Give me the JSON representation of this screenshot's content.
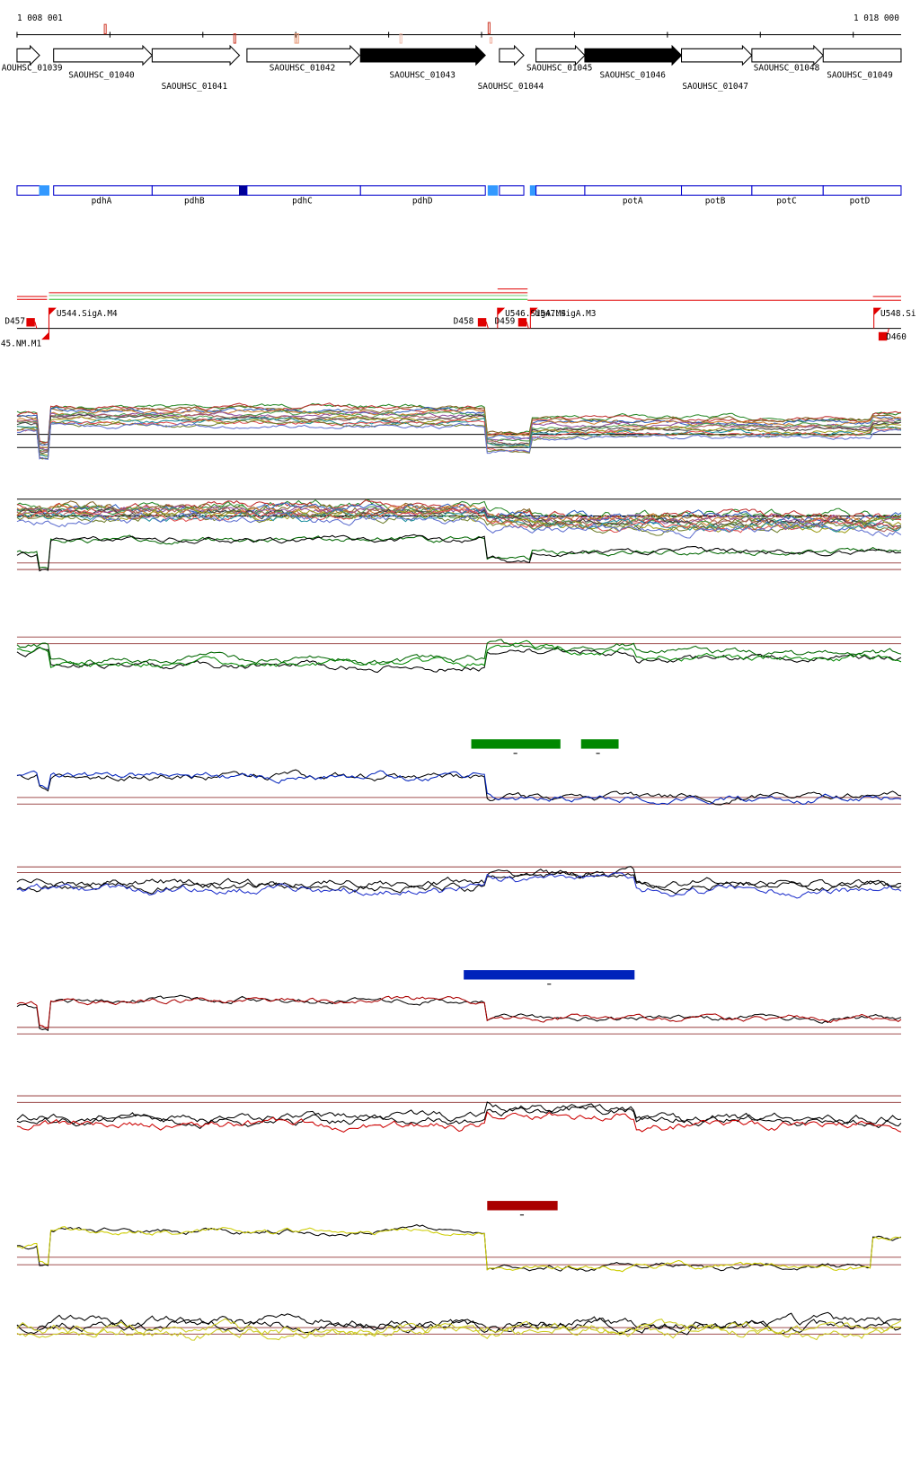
{
  "ruler": {
    "start": "1 008 001",
    "end": "1 018 000"
  },
  "genes": [
    "AOUHSC_01039",
    "SAOUHSC_01040",
    "SAOUHSC_01041",
    "SAOUHSC_01042",
    "SAOUHSC_01043",
    "SAOUHSC_01044",
    "SAOUHSC_01045",
    "SAOUHSC_01046",
    "SAOUHSC_01047",
    "SAOUHSC_01048",
    "SAOUHSC_01049"
  ],
  "operon_genes": [
    "pdhA",
    "pdhB",
    "pdhC",
    "pdhD",
    "potA",
    "potB",
    "potC",
    "potD"
  ],
  "tss": [
    "D457",
    "U544.SigA.M4",
    "45.NM.M1",
    "D458",
    "D459",
    "U546.SigA.M4",
    "U547.SigA.M3",
    "U548.Si",
    "D460"
  ]
}
